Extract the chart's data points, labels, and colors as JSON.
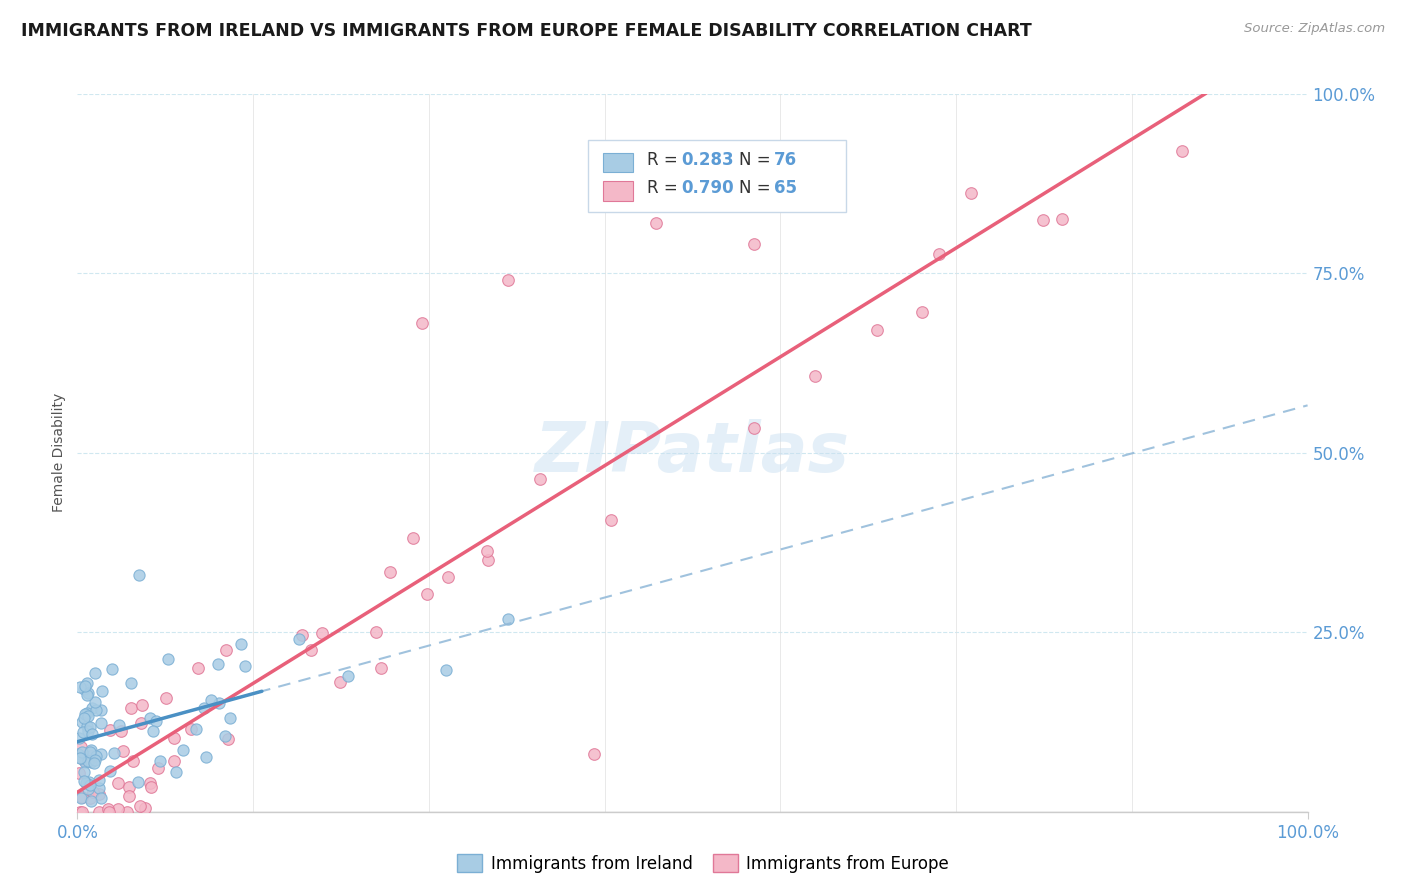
{
  "title": "IMMIGRANTS FROM IRELAND VS IMMIGRANTS FROM EUROPE FEMALE DISABILITY CORRELATION CHART",
  "source": "Source: ZipAtlas.com",
  "ylabel": "Female Disability",
  "legend_r1": "R = 0.283",
  "legend_n1": "N = 76",
  "legend_r2": "R = 0.790",
  "legend_n2": "N = 65",
  "color_ireland": "#a8cce4",
  "color_ireland_edge": "#7bafd4",
  "color_europe": "#f4b8c8",
  "color_europe_edge": "#e07898",
  "color_ireland_line": "#4a90c4",
  "color_europe_line": "#e8607a",
  "color_dashed": "#90b8d8",
  "background_color": "#ffffff",
  "watermark": "ZIPatlas",
  "tick_color": "#5b9bd5",
  "grid_color": "#d0e8f0",
  "legend_box_color": "#f0f8ff",
  "legend_edge_color": "#d0d8e0"
}
